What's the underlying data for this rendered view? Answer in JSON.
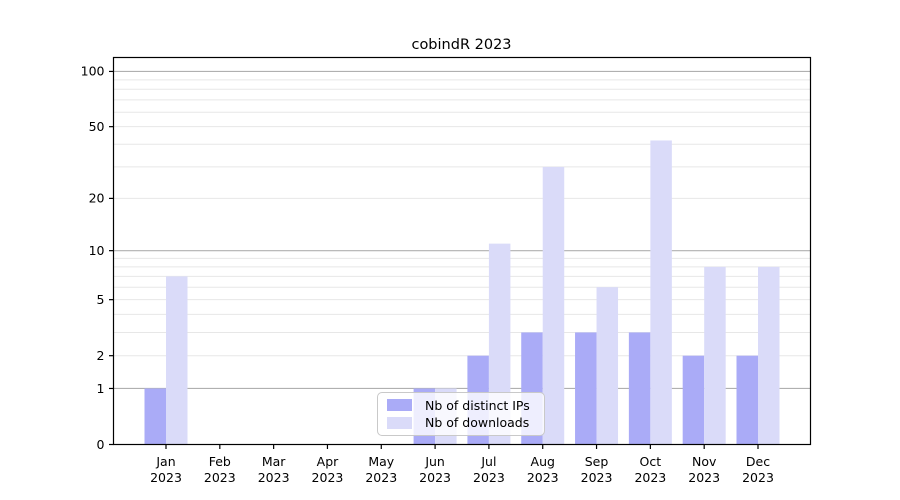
{
  "chart_data": {
    "type": "bar",
    "title": "cobindR 2023",
    "x_year": "2023",
    "categories": [
      "Jan",
      "Feb",
      "Mar",
      "Apr",
      "May",
      "Jun",
      "Jul",
      "Aug",
      "Sep",
      "Oct",
      "Nov",
      "Dec"
    ],
    "series": [
      {
        "name": "Nb of distinct IPs",
        "color": "#aaabf7",
        "values": [
          1,
          0,
          0,
          0,
          0,
          1,
          2,
          3,
          3,
          3,
          2,
          2
        ]
      },
      {
        "name": "Nb of downloads",
        "color": "#dadbf9",
        "values": [
          7,
          0,
          0,
          0,
          0,
          1,
          11,
          30,
          6,
          42,
          8,
          8
        ]
      }
    ],
    "y_axis": {
      "scale": "log10(value+1)",
      "tick_values": [
        0,
        1,
        2,
        5,
        10,
        20,
        50,
        100
      ],
      "major_gridlines": [
        1,
        10,
        100
      ],
      "minor_gridlines": [
        2,
        3,
        4,
        5,
        6,
        7,
        8,
        9,
        20,
        30,
        40,
        50,
        60,
        70,
        80,
        90
      ],
      "range_top": 119
    },
    "legend": {
      "position": "lower center",
      "frame": true
    },
    "grid": "on",
    "colors": {
      "grid_major": "#b0b0b0",
      "grid_minor": "#e7e7e7",
      "spine": "#000000",
      "text": "#000000",
      "background": "#ffffff"
    }
  }
}
